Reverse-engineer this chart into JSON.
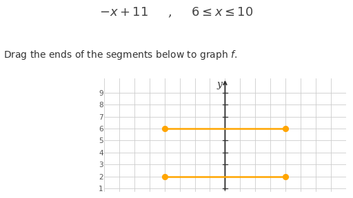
{
  "formula_text": "$-x + 11$     ,     $6 \\leq x \\leq 10$",
  "instruction_text": "Drag the ends of the segments below to graph $f$.",
  "segment1": {
    "x_start": -4,
    "x_end": 4,
    "y": 6,
    "color": "#FFA500"
  },
  "segment2": {
    "x_start": -4,
    "x_end": 4,
    "y": 2,
    "color": "#FFA500"
  },
  "dot_color": "#FFA500",
  "dot_size": 28,
  "line_width": 1.8,
  "grid_color": "#cccccc",
  "axis_color": "#333333",
  "background_color": "#ffffff",
  "y_label": "y",
  "xlim": [
    -8,
    8
  ],
  "ylim": [
    0.7,
    10.2
  ],
  "yticks": [
    1,
    2,
    3,
    4,
    5,
    6,
    7,
    8,
    9
  ],
  "formula_fontsize": 13,
  "instruction_fontsize": 10,
  "tick_fontsize": 7.5
}
